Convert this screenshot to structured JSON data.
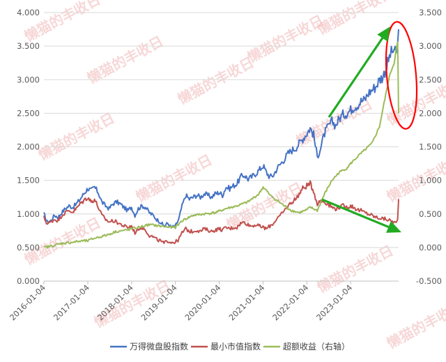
{
  "chart_data": {
    "type": "line",
    "title": "",
    "xlabel": "",
    "ylabel": "",
    "x_ticks": [
      "2016-01-04",
      "2017-01-04",
      "2018-01-04",
      "2019-01-04",
      "2020-01-04",
      "2021-01-04",
      "2022-01-04",
      "2023-01-04"
    ],
    "y_left": {
      "ticks": [
        "0.000",
        "0.500",
        "1.000",
        "1.500",
        "2.000",
        "2.500",
        "3.000",
        "3.500",
        "4.000"
      ],
      "lim": [
        0,
        4
      ]
    },
    "y_right": {
      "ticks": [
        "-0.500",
        "0.000",
        "0.500",
        "1.000",
        "1.500",
        "2.000",
        "2.500",
        "3.000",
        "3.500"
      ],
      "lim": [
        -0.5,
        3.5
      ]
    },
    "grid": "horizontal",
    "legend_position": "bottom",
    "x_range": [
      "2016-01-04",
      "2024-02-08"
    ],
    "series": [
      {
        "name": "万得微盘股指数",
        "axis": "left",
        "color": "#4472c4",
        "points": [
          [
            "2016-01-04",
            1.0
          ],
          [
            "2016-02-01",
            0.88
          ],
          [
            "2016-03-01",
            0.9
          ],
          [
            "2016-04-01",
            0.98
          ],
          [
            "2016-05-01",
            0.95
          ],
          [
            "2016-06-01",
            1.02
          ],
          [
            "2016-07-01",
            1.08
          ],
          [
            "2016-08-01",
            1.12
          ],
          [
            "2016-09-01",
            1.1
          ],
          [
            "2016-10-01",
            1.15
          ],
          [
            "2016-11-01",
            1.22
          ],
          [
            "2016-12-01",
            1.3
          ],
          [
            "2017-01-04",
            1.38
          ],
          [
            "2017-02-01",
            1.35
          ],
          [
            "2017-03-01",
            1.4
          ],
          [
            "2017-04-01",
            1.32
          ],
          [
            "2017-05-01",
            1.18
          ],
          [
            "2017-06-01",
            1.12
          ],
          [
            "2017-07-01",
            1.08
          ],
          [
            "2017-08-01",
            1.15
          ],
          [
            "2017-09-01",
            1.18
          ],
          [
            "2017-10-01",
            1.15
          ],
          [
            "2017-11-01",
            1.1
          ],
          [
            "2017-12-01",
            1.05
          ],
          [
            "2018-01-04",
            1.1
          ],
          [
            "2018-02-01",
            0.98
          ],
          [
            "2018-03-01",
            1.08
          ],
          [
            "2018-04-01",
            1.12
          ],
          [
            "2018-05-01",
            1.1
          ],
          [
            "2018-06-01",
            1.02
          ],
          [
            "2018-07-01",
            0.98
          ],
          [
            "2018-08-01",
            0.92
          ],
          [
            "2018-09-01",
            0.88
          ],
          [
            "2018-10-01",
            0.82
          ],
          [
            "2018-11-01",
            0.86
          ],
          [
            "2018-12-01",
            0.8
          ],
          [
            "2019-01-04",
            0.82
          ],
          [
            "2019-02-01",
            0.92
          ],
          [
            "2019-03-01",
            1.12
          ],
          [
            "2019-04-01",
            1.28
          ],
          [
            "2019-05-01",
            1.22
          ],
          [
            "2019-06-01",
            1.25
          ],
          [
            "2019-07-01",
            1.28
          ],
          [
            "2019-08-01",
            1.25
          ],
          [
            "2019-09-01",
            1.3
          ],
          [
            "2019-10-01",
            1.28
          ],
          [
            "2019-11-01",
            1.25
          ],
          [
            "2019-12-01",
            1.3
          ],
          [
            "2020-01-04",
            1.32
          ],
          [
            "2020-02-01",
            1.28
          ],
          [
            "2020-03-01",
            1.4
          ],
          [
            "2020-04-01",
            1.38
          ],
          [
            "2020-05-01",
            1.42
          ],
          [
            "2020-06-01",
            1.45
          ],
          [
            "2020-07-01",
            1.55
          ],
          [
            "2020-08-01",
            1.58
          ],
          [
            "2020-09-01",
            1.52
          ],
          [
            "2020-10-01",
            1.55
          ],
          [
            "2020-11-01",
            1.6
          ],
          [
            "2020-12-01",
            1.65
          ],
          [
            "2021-01-04",
            1.72
          ],
          [
            "2021-02-01",
            1.62
          ],
          [
            "2021-03-01",
            1.55
          ],
          [
            "2021-04-01",
            1.58
          ],
          [
            "2021-05-01",
            1.68
          ],
          [
            "2021-06-01",
            1.75
          ],
          [
            "2021-07-01",
            1.82
          ],
          [
            "2021-08-01",
            1.9
          ],
          [
            "2021-09-01",
            1.95
          ],
          [
            "2021-10-01",
            1.98
          ],
          [
            "2021-11-01",
            2.05
          ],
          [
            "2021-12-01",
            2.12
          ],
          [
            "2022-01-04",
            2.2
          ],
          [
            "2022-02-01",
            2.28
          ],
          [
            "2022-03-01",
            2.18
          ],
          [
            "2022-04-01",
            1.85
          ],
          [
            "2022-05-01",
            2.0
          ],
          [
            "2022-06-01",
            2.2
          ],
          [
            "2022-07-01",
            2.3
          ],
          [
            "2022-08-01",
            2.38
          ],
          [
            "2022-09-01",
            2.32
          ],
          [
            "2022-10-01",
            2.42
          ],
          [
            "2022-11-01",
            2.48
          ],
          [
            "2022-12-01",
            2.5
          ],
          [
            "2023-01-04",
            2.55
          ],
          [
            "2023-02-01",
            2.6
          ],
          [
            "2023-03-01",
            2.62
          ],
          [
            "2023-04-01",
            2.68
          ],
          [
            "2023-05-01",
            2.7
          ],
          [
            "2023-06-01",
            2.8
          ],
          [
            "2023-07-01",
            2.85
          ],
          [
            "2023-08-01",
            2.9
          ],
          [
            "2023-09-01",
            3.0
          ],
          [
            "2023-10-01",
            3.05
          ],
          [
            "2023-11-01",
            3.2
          ],
          [
            "2023-12-01",
            3.38
          ],
          [
            "2024-01-02",
            3.45
          ],
          [
            "2024-01-18",
            3.35
          ],
          [
            "2024-01-31",
            3.55
          ],
          [
            "2024-02-08",
            3.75
          ]
        ]
      },
      {
        "name": "最小市值指数",
        "axis": "left",
        "color": "#c0504d",
        "points": [
          [
            "2016-01-04",
            0.95
          ],
          [
            "2016-02-01",
            0.85
          ],
          [
            "2016-03-01",
            0.88
          ],
          [
            "2016-04-01",
            0.92
          ],
          [
            "2016-05-01",
            0.9
          ],
          [
            "2016-06-01",
            0.98
          ],
          [
            "2016-07-01",
            1.02
          ],
          [
            "2016-08-01",
            1.05
          ],
          [
            "2016-09-01",
            1.03
          ],
          [
            "2016-10-01",
            1.08
          ],
          [
            "2016-11-01",
            1.15
          ],
          [
            "2016-12-01",
            1.2
          ],
          [
            "2017-01-04",
            1.25
          ],
          [
            "2017-02-01",
            1.18
          ],
          [
            "2017-03-01",
            1.22
          ],
          [
            "2017-04-01",
            1.1
          ],
          [
            "2017-05-01",
            0.98
          ],
          [
            "2017-06-01",
            0.92
          ],
          [
            "2017-07-01",
            0.88
          ],
          [
            "2017-08-01",
            0.9
          ],
          [
            "2017-09-01",
            0.88
          ],
          [
            "2017-10-01",
            0.85
          ],
          [
            "2017-11-01",
            0.82
          ],
          [
            "2017-12-01",
            0.8
          ],
          [
            "2018-01-04",
            0.82
          ],
          [
            "2018-02-01",
            0.72
          ],
          [
            "2018-03-01",
            0.78
          ],
          [
            "2018-04-01",
            0.8
          ],
          [
            "2018-05-01",
            0.76
          ],
          [
            "2018-06-01",
            0.68
          ],
          [
            "2018-07-01",
            0.66
          ],
          [
            "2018-08-01",
            0.62
          ],
          [
            "2018-09-01",
            0.6
          ],
          [
            "2018-10-01",
            0.56
          ],
          [
            "2018-11-01",
            0.6
          ],
          [
            "2018-12-01",
            0.58
          ],
          [
            "2019-01-04",
            0.58
          ],
          [
            "2019-02-01",
            0.62
          ],
          [
            "2019-03-01",
            0.72
          ],
          [
            "2019-04-01",
            0.78
          ],
          [
            "2019-05-01",
            0.74
          ],
          [
            "2019-06-01",
            0.74
          ],
          [
            "2019-07-01",
            0.76
          ],
          [
            "2019-08-01",
            0.74
          ],
          [
            "2019-09-01",
            0.78
          ],
          [
            "2019-10-01",
            0.76
          ],
          [
            "2019-11-01",
            0.74
          ],
          [
            "2019-12-01",
            0.76
          ],
          [
            "2020-01-04",
            0.78
          ],
          [
            "2020-02-01",
            0.76
          ],
          [
            "2020-03-01",
            0.8
          ],
          [
            "2020-04-01",
            0.78
          ],
          [
            "2020-05-01",
            0.8
          ],
          [
            "2020-06-01",
            0.8
          ],
          [
            "2020-07-01",
            0.86
          ],
          [
            "2020-08-01",
            0.88
          ],
          [
            "2020-09-01",
            0.84
          ],
          [
            "2020-10-01",
            0.82
          ],
          [
            "2020-11-01",
            0.84
          ],
          [
            "2020-12-01",
            0.82
          ],
          [
            "2021-01-04",
            0.8
          ],
          [
            "2021-02-01",
            0.78
          ],
          [
            "2021-03-01",
            0.82
          ],
          [
            "2021-04-01",
            0.86
          ],
          [
            "2021-05-01",
            0.94
          ],
          [
            "2021-06-01",
            0.98
          ],
          [
            "2021-07-01",
            1.05
          ],
          [
            "2021-08-01",
            1.12
          ],
          [
            "2021-09-01",
            1.18
          ],
          [
            "2021-10-01",
            1.22
          ],
          [
            "2021-11-01",
            1.3
          ],
          [
            "2021-12-01",
            1.38
          ],
          [
            "2022-01-04",
            1.42
          ],
          [
            "2022-02-01",
            1.45
          ],
          [
            "2022-03-01",
            1.35
          ],
          [
            "2022-04-01",
            1.15
          ],
          [
            "2022-05-01",
            1.2
          ],
          [
            "2022-06-01",
            1.18
          ],
          [
            "2022-07-01",
            1.15
          ],
          [
            "2022-08-01",
            1.1
          ],
          [
            "2022-09-01",
            1.08
          ],
          [
            "2022-10-01",
            1.1
          ],
          [
            "2022-11-01",
            1.12
          ],
          [
            "2022-12-01",
            1.1
          ],
          [
            "2023-01-04",
            1.12
          ],
          [
            "2023-02-01",
            1.1
          ],
          [
            "2023-03-01",
            1.06
          ],
          [
            "2023-04-01",
            1.05
          ],
          [
            "2023-05-01",
            1.02
          ],
          [
            "2023-06-01",
            1.0
          ],
          [
            "2023-07-01",
            0.98
          ],
          [
            "2023-08-01",
            0.95
          ],
          [
            "2023-09-01",
            0.94
          ],
          [
            "2023-10-01",
            0.93
          ],
          [
            "2023-11-01",
            0.92
          ],
          [
            "2023-12-01",
            0.9
          ],
          [
            "2024-01-02",
            0.88
          ],
          [
            "2024-01-18",
            0.86
          ],
          [
            "2024-01-31",
            0.92
          ],
          [
            "2024-02-08",
            1.22
          ]
        ]
      },
      {
        "name": "超额收益（右轴）",
        "axis": "right",
        "color": "#9bbb59",
        "points": [
          [
            "2016-01-04",
            0.0
          ],
          [
            "2016-03-01",
            0.02
          ],
          [
            "2016-06-01",
            0.06
          ],
          [
            "2016-09-01",
            0.08
          ],
          [
            "2016-12-01",
            0.1
          ],
          [
            "2017-01-04",
            0.1
          ],
          [
            "2017-03-01",
            0.14
          ],
          [
            "2017-06-01",
            0.18
          ],
          [
            "2017-09-01",
            0.24
          ],
          [
            "2017-12-01",
            0.26
          ],
          [
            "2018-01-04",
            0.28
          ],
          [
            "2018-03-01",
            0.3
          ],
          [
            "2018-06-01",
            0.34
          ],
          [
            "2018-09-01",
            0.32
          ],
          [
            "2018-12-01",
            0.3
          ],
          [
            "2019-01-04",
            0.3
          ],
          [
            "2019-03-01",
            0.4
          ],
          [
            "2019-06-01",
            0.48
          ],
          [
            "2019-09-01",
            0.5
          ],
          [
            "2019-12-01",
            0.52
          ],
          [
            "2020-01-04",
            0.54
          ],
          [
            "2020-03-01",
            0.58
          ],
          [
            "2020-06-01",
            0.62
          ],
          [
            "2020-09-01",
            0.68
          ],
          [
            "2020-12-01",
            0.8
          ],
          [
            "2021-01-04",
            0.9
          ],
          [
            "2021-02-01",
            0.85
          ],
          [
            "2021-03-01",
            0.78
          ],
          [
            "2021-05-01",
            0.7
          ],
          [
            "2021-07-01",
            0.62
          ],
          [
            "2021-09-01",
            0.55
          ],
          [
            "2021-11-01",
            0.52
          ],
          [
            "2022-01-04",
            0.56
          ],
          [
            "2022-02-01",
            0.6
          ],
          [
            "2022-04-01",
            0.55
          ],
          [
            "2022-06-01",
            0.8
          ],
          [
            "2022-08-01",
            1.0
          ],
          [
            "2022-10-01",
            1.12
          ],
          [
            "2022-12-01",
            1.18
          ],
          [
            "2023-01-04",
            1.25
          ],
          [
            "2023-03-01",
            1.35
          ],
          [
            "2023-05-01",
            1.45
          ],
          [
            "2023-07-01",
            1.55
          ],
          [
            "2023-09-01",
            1.8
          ],
          [
            "2023-11-01",
            2.35
          ],
          [
            "2023-12-01",
            2.6
          ],
          [
            "2024-01-02",
            2.75
          ],
          [
            "2024-01-18",
            2.95
          ],
          [
            "2024-01-31",
            3.05
          ],
          [
            "2024-02-05",
            2.4
          ],
          [
            "2024-02-08",
            2.0
          ]
        ]
      }
    ],
    "annotations": [
      {
        "type": "ellipse",
        "color": "#ff0000",
        "target": "recent spike"
      },
      {
        "type": "arrow",
        "color": "#22aa22",
        "direction": "up"
      },
      {
        "type": "arrow",
        "color": "#22aa22",
        "direction": "down"
      }
    ]
  },
  "watermark": "懒猫的丰收日"
}
